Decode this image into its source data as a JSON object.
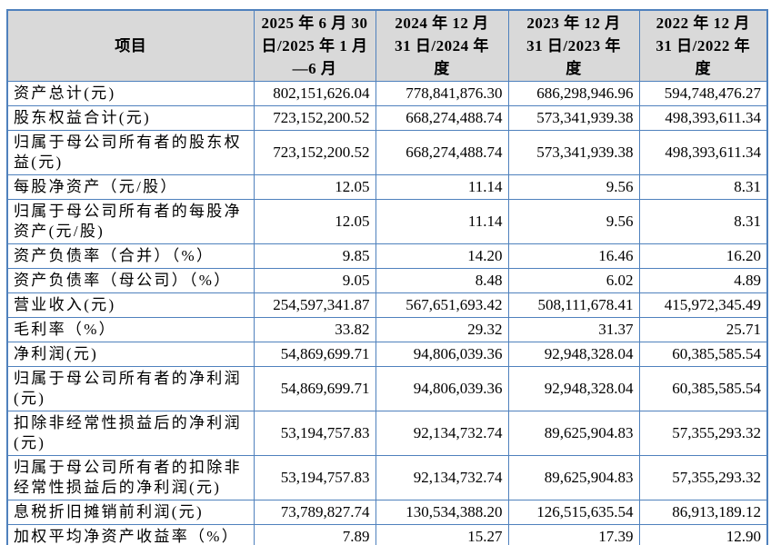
{
  "colors": {
    "table_border": "#4F81BD",
    "header_background": "#D9D9D9",
    "corner_mark": "#3A66A7"
  },
  "table": {
    "columns": [
      "项目",
      "2025 年 6 月 30\n日/2025 年 1 月\n—6 月",
      "2024 年 12 月\n31 日/2024 年\n度",
      "2023 年 12 月\n31 日/2023 年\n度",
      "2022 年 12 月\n31 日/2022 年\n度"
    ],
    "rows": [
      {
        "label": "资产总计(元)",
        "values": [
          "802,151,626.04",
          "778,841,876.30",
          "686,298,946.96",
          "594,748,476.27"
        ]
      },
      {
        "label": "股东权益合计(元)",
        "values": [
          "723,152,200.52",
          "668,274,488.74",
          "573,341,939.38",
          "498,393,611.34"
        ]
      },
      {
        "label": "归属于母公司所有者的股东权益(元)",
        "values": [
          "723,152,200.52",
          "668,274,488.74",
          "573,341,939.38",
          "498,393,611.34"
        ]
      },
      {
        "label": "每股净资产（元/股）",
        "values": [
          "12.05",
          "11.14",
          "9.56",
          "8.31"
        ]
      },
      {
        "label": "归属于母公司所有者的每股净资产(元/股)",
        "values": [
          "12.05",
          "11.14",
          "9.56",
          "8.31"
        ]
      },
      {
        "label": "资产负债率（合并）（%）",
        "values": [
          "9.85",
          "14.20",
          "16.46",
          "16.20"
        ]
      },
      {
        "label": "资产负债率（母公司）（%）",
        "values": [
          "9.05",
          "8.48",
          "6.02",
          "4.89"
        ]
      },
      {
        "label": "营业收入(元)",
        "values": [
          "254,597,341.87",
          "567,651,693.42",
          "508,111,678.41",
          "415,972,345.49"
        ]
      },
      {
        "label": "毛利率（%）",
        "values": [
          "33.82",
          "29.32",
          "31.37",
          "25.71"
        ]
      },
      {
        "label": "净利润(元)",
        "values": [
          "54,869,699.71",
          "94,806,039.36",
          "92,948,328.04",
          "60,385,585.54"
        ]
      },
      {
        "label": "归属于母公司所有者的净利润(元)",
        "values": [
          "54,869,699.71",
          "94,806,039.36",
          "92,948,328.04",
          "60,385,585.54"
        ]
      },
      {
        "label": "扣除非经常性损益后的净利润(元)",
        "values": [
          "53,194,757.83",
          "92,134,732.74",
          "89,625,904.83",
          "57,355,293.32"
        ]
      },
      {
        "label": "归属于母公司所有者的扣除非经常性损益后的净利润(元)",
        "values": [
          "53,194,757.83",
          "92,134,732.74",
          "89,625,904.83",
          "57,355,293.32"
        ]
      },
      {
        "label": "息税折旧摊销前利润(元)",
        "values": [
          "73,789,827.74",
          "130,534,388.20",
          "126,515,635.54",
          "86,913,189.12"
        ]
      },
      {
        "label": "加权平均净资产收益率（%）",
        "values": [
          "7.89",
          "15.27",
          "17.39",
          "12.90"
        ]
      }
    ]
  }
}
